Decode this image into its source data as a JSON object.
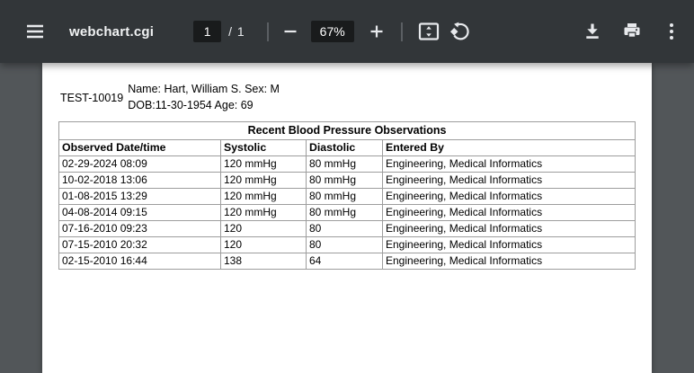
{
  "toolbar": {
    "title": "webchart.cgi",
    "page": {
      "current": "1",
      "total_label": "/  1"
    },
    "zoom": {
      "level": "67%"
    }
  },
  "document": {
    "patient": {
      "id": "TEST-10019",
      "line1": "Name: Hart, William S. Sex: M",
      "line2": "DOB:11-30-1954 Age: 69"
    },
    "table": {
      "title": "Recent Blood Pressure Observations",
      "headers": [
        "Observed Date/time",
        "Systolic",
        "Diastolic",
        "Entered By"
      ],
      "rows": [
        [
          "02-29-2024 08:09",
          "120 mmHg",
          "80 mmHg",
          "Engineering, Medical Informatics"
        ],
        [
          "10-02-2018 13:06",
          "120 mmHg",
          "80 mmHg",
          "Engineering, Medical Informatics"
        ],
        [
          "01-08-2015 13:29",
          "120 mmHg",
          "80 mmHg",
          "Engineering, Medical Informatics"
        ],
        [
          "04-08-2014 09:15",
          "120 mmHg",
          "80 mmHg",
          "Engineering, Medical Informatics"
        ],
        [
          "07-16-2010 09:23",
          "120",
          "80",
          "Engineering, Medical Informatics"
        ],
        [
          "07-15-2010 20:32",
          "120",
          "80",
          "Engineering, Medical Informatics"
        ],
        [
          "02-15-2010 16:44",
          "138",
          "64",
          "Engineering, Medical Informatics"
        ]
      ]
    }
  },
  "colors": {
    "toolbar_bg": "#323639",
    "canvas_bg": "#525659",
    "control_bg": "#191b1c",
    "icon": "#e8eaed",
    "page_bg": "#ffffff",
    "table_border": "#9d9d9d",
    "text": "#000000"
  }
}
